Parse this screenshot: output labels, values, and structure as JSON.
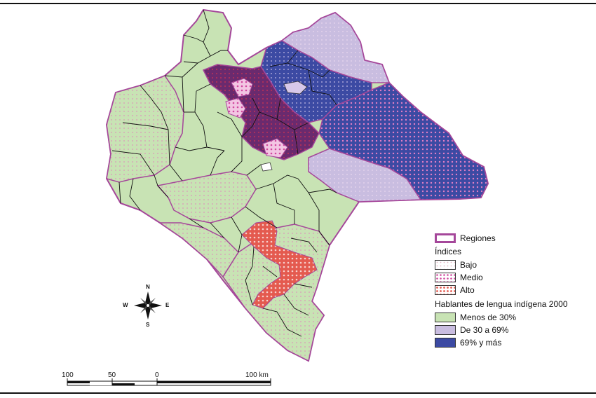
{
  "legend": {
    "regions_label": "Regiones",
    "indices_title": "Índices",
    "index_items": [
      {
        "label": "Bajo",
        "color": "#f2dede"
      },
      {
        "label": "Medio",
        "color": "#e58fd0"
      },
      {
        "label": "Alto",
        "color": "#e45a4f"
      }
    ],
    "speakers_title": "Hablantes de lengua indígena 2000",
    "speaker_items": [
      {
        "label": "Menos de 30%",
        "color": "#c8e3b4"
      },
      {
        "label": "De 30 a 69%",
        "color": "#c9bde0"
      },
      {
        "label": "69% y más",
        "color": "#3c4aa3"
      }
    ],
    "region_border_color": "#a5479a"
  },
  "compass": {
    "north": "N",
    "south": "S",
    "east": "E",
    "west": "W"
  },
  "scale_bar": {
    "labels": [
      "100",
      "50",
      "0",
      "100 km"
    ]
  }
}
